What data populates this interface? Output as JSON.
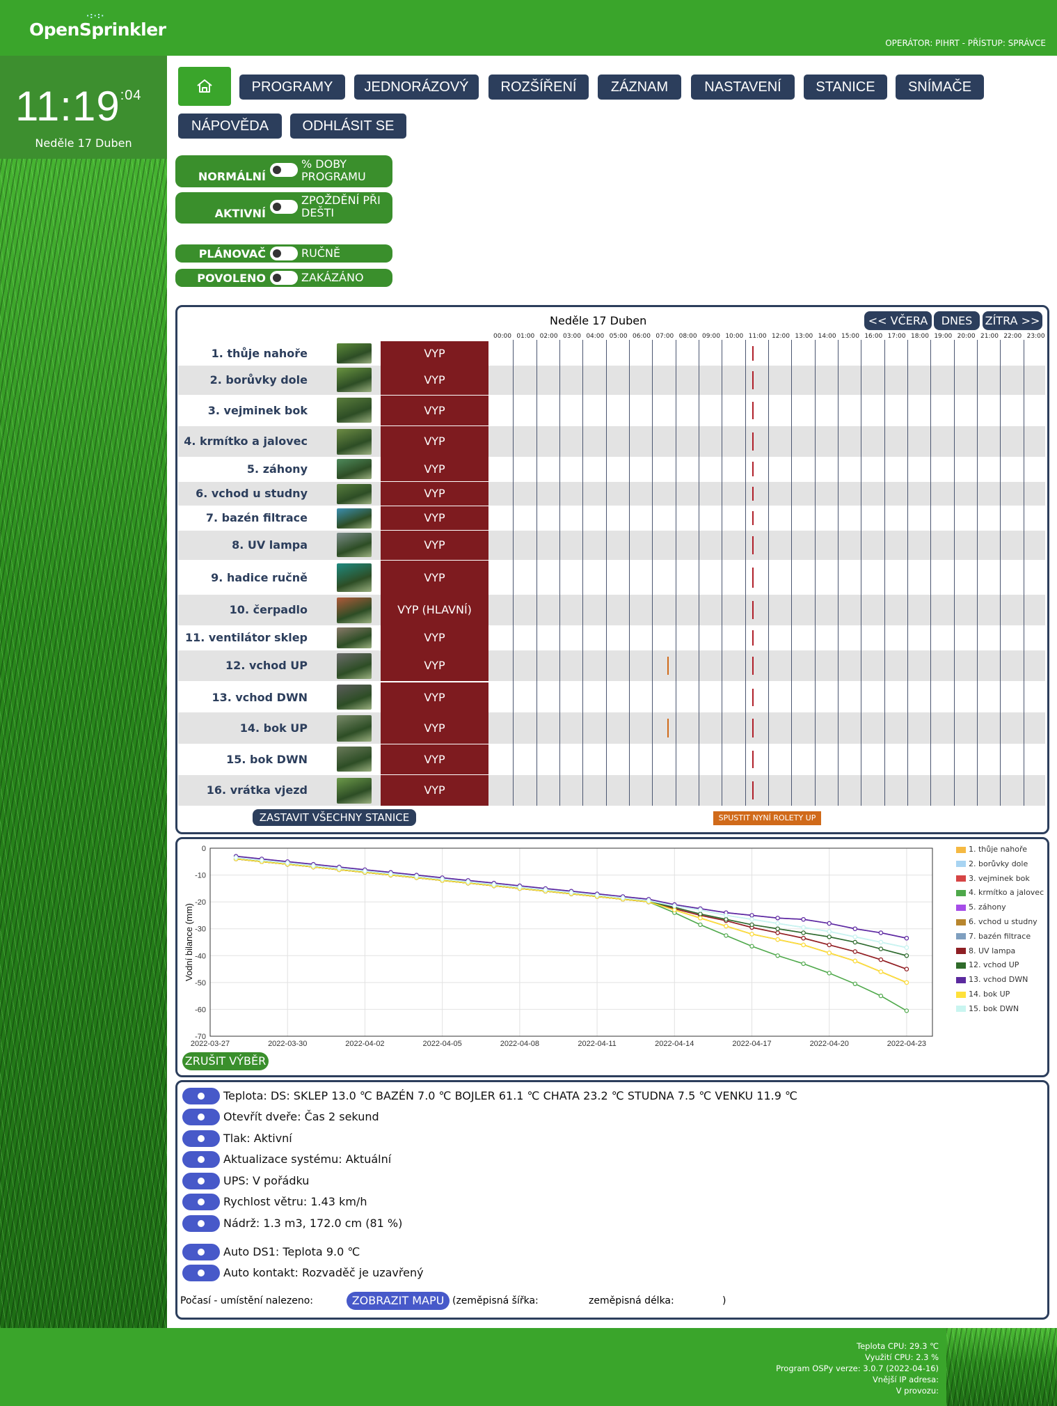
{
  "header": {
    "logo": "OpenSprinkler",
    "operator": "OPERÁTOR: PIHRT - PŘÍSTUP: SPRÁVCE"
  },
  "clock": {
    "hm": "11:19",
    "sec": ":04",
    "date": "Neděle 17 Duben"
  },
  "nav": {
    "row1": [
      "PROGRAMY",
      "JEDNORÁZOVÝ",
      "ROZŠÍŘENÍ",
      "ZÁZNAM",
      "NASTAVENÍ",
      "STANICE",
      "SNÍMAČE"
    ],
    "row2": [
      "NÁPOVĚDA",
      "ODHLÁSIT SE"
    ]
  },
  "toggles": [
    {
      "left": "NORMÁLNÍ",
      "right1": "% DOBY",
      "right2": "PROGRAMU"
    },
    {
      "left": "AKTIVNÍ",
      "right1": "ZPOŽDĚNÍ PŘI",
      "right2": "DEŠTI"
    },
    {
      "left": "PLÁNOVAČ",
      "right1": "RUČNĚ",
      "right2": ""
    },
    {
      "left": "POVOLENO",
      "right1": "ZAKÁZÁNO",
      "right2": ""
    }
  ],
  "schedule": {
    "date": "Neděle 17 Duben",
    "btn_prev": "<< VČERA",
    "btn_today": "DNES",
    "btn_next": "ZÍTRA >>",
    "hours": [
      "00:00",
      "01:00",
      "02:00",
      "03:00",
      "04:00",
      "05:00",
      "06:00",
      "07:00",
      "08:00",
      "09:00",
      "10:00",
      "11:00",
      "12:00",
      "13:00",
      "14:00",
      "15:00",
      "16:00",
      "17:00",
      "18:00",
      "19:00",
      "20:00",
      "21:00",
      "22:00",
      "23:00"
    ],
    "now_hour": 11.32,
    "stations": [
      {
        "name": "1. thůje nahoře",
        "status": "VYP"
      },
      {
        "name": "2. borůvky dole",
        "status": "VYP"
      },
      {
        "name": "3. vejminek bok",
        "status": "VYP"
      },
      {
        "name": "4. krmítko a jalovec",
        "status": "VYP"
      },
      {
        "name": "5. záhony",
        "status": "VYP"
      },
      {
        "name": "6. vchod u studny",
        "status": "VYP"
      },
      {
        "name": "7. bazén filtrace",
        "status": "VYP"
      },
      {
        "name": "8. UV lampa",
        "status": "VYP"
      },
      {
        "name": "9. hadice ručně",
        "status": "VYP"
      },
      {
        "name": "10. čerpadlo",
        "status": "VYP (HLAVNÍ)"
      },
      {
        "name": "11. ventilátor sklep",
        "status": "VYP"
      },
      {
        "name": "12. vchod UP",
        "status": "VYP"
      },
      {
        "name": "13. vchod DWN",
        "status": "VYP"
      },
      {
        "name": "14. bok UP",
        "status": "VYP"
      },
      {
        "name": "15. bok DWN",
        "status": "VYP"
      },
      {
        "name": "16. vrátka vjezd",
        "status": "VYP"
      }
    ],
    "scheduled_marks": [
      {
        "station": 12,
        "hour": 7.65
      },
      {
        "station": 14,
        "hour": 7.65
      }
    ],
    "stop_all": "ZASTAVIT VŠECHNY STANICE",
    "run_now": "SPUSTIT NYNÍ ROLETY UP"
  },
  "chart_data": {
    "type": "line",
    "ylabel": "Vodní bilance (mm)",
    "xlabel": "",
    "ylim": [
      -70,
      0
    ],
    "yticks": [
      0,
      -10,
      -20,
      -30,
      -40,
      -50,
      -60,
      -70
    ],
    "x_ticks": [
      "2022-03-27",
      "2022-03-30",
      "2022-04-02",
      "2022-04-05",
      "2022-04-08",
      "2022-04-11",
      "2022-04-14",
      "2022-04-17",
      "2022-04-20",
      "2022-04-23"
    ],
    "x": [
      "2022-03-28",
      "2022-03-29",
      "2022-03-30",
      "2022-03-31",
      "2022-04-01",
      "2022-04-02",
      "2022-04-03",
      "2022-04-04",
      "2022-04-05",
      "2022-04-06",
      "2022-04-07",
      "2022-04-08",
      "2022-04-09",
      "2022-04-10",
      "2022-04-11",
      "2022-04-12",
      "2022-04-13",
      "2022-04-14",
      "2022-04-15",
      "2022-04-16",
      "2022-04-17",
      "2022-04-18",
      "2022-04-19",
      "2022-04-20",
      "2022-04-21",
      "2022-04-22",
      "2022-04-23"
    ],
    "series": [
      {
        "name": "1. thůje nahoře",
        "color": "#f5b942",
        "values": [
          -4,
          -5,
          -6,
          -7,
          -8,
          -9,
          -10,
          -11,
          -12,
          -13,
          -14,
          -15,
          -16,
          -17,
          -18,
          -19,
          -20,
          -23,
          -26,
          -29,
          -32,
          -34,
          -36,
          -39,
          -42,
          -46,
          -50
        ]
      },
      {
        "name": "2. borůvky dole",
        "color": "#a8d4f2",
        "values": [
          -3.5,
          -4.5,
          -5.5,
          -6.5,
          -7.5,
          -8.5,
          -9.5,
          -10.5,
          -11.5,
          -12.5,
          -13.5,
          -14.5,
          -15.5,
          -16.5,
          -17.5,
          -18.5,
          -19.5,
          -21.5,
          -23,
          -25,
          -26.5,
          -28,
          -29.5,
          -31,
          -33,
          -35,
          -37
        ]
      },
      {
        "name": "3. vejminek bok",
        "color": "#d64545",
        "values": [
          -4,
          -5,
          -6,
          -7,
          -8,
          -9,
          -10,
          -11,
          -12,
          -13,
          -14,
          -15,
          -16,
          -17,
          -18,
          -19,
          -20,
          -22.5,
          -25,
          -27,
          -29.5,
          -31.5,
          -33.5,
          -36,
          -38.5,
          -41.5,
          -45
        ]
      },
      {
        "name": "4. krmítko a jalovec",
        "color": "#4ea84a",
        "values": [
          -4,
          -5,
          -6,
          -7,
          -8,
          -9,
          -10,
          -11,
          -12,
          -13,
          -14,
          -15,
          -16,
          -17,
          -18,
          -19,
          -20,
          -24,
          -28.5,
          -32.5,
          -36.5,
          -40,
          -43,
          -46.5,
          -50.5,
          -55,
          -60.5
        ]
      },
      {
        "name": "5. záhony",
        "color": "#a64de8",
        "values": [
          -3,
          -4,
          -5,
          -6,
          -7,
          -8,
          -9,
          -10,
          -11,
          -12,
          -13,
          -14,
          -15,
          -16,
          -17,
          -18,
          -19,
          -21,
          -22.5,
          -24,
          -25,
          -26,
          -26.5,
          -28,
          -30,
          -31.5,
          -33.5
        ]
      },
      {
        "name": "6. vchod u studny",
        "color": "#b8862e",
        "values": [
          -4,
          -5,
          -6,
          -7,
          -8,
          -9,
          -10,
          -11,
          -12,
          -13,
          -14,
          -15,
          -16,
          -17,
          -18,
          -19,
          -20,
          -23,
          -26,
          -29,
          -32,
          -34,
          -36,
          -39,
          -42,
          -46,
          -50
        ]
      },
      {
        "name": "7. bazén filtrace",
        "color": "#7f9fbf",
        "values": [
          -4,
          -5,
          -6,
          -7,
          -8,
          -9,
          -10,
          -11,
          -12,
          -13,
          -14,
          -15,
          -16,
          -17,
          -18,
          -19,
          -20,
          -22,
          -24.5,
          -26.5,
          -28.5,
          -30,
          -31.5,
          -33,
          -35,
          -37.5,
          -40
        ]
      },
      {
        "name": "8. UV lampa",
        "color": "#8e1f24",
        "values": [
          -4,
          -5,
          -6,
          -7,
          -8,
          -9,
          -10,
          -11,
          -12,
          -13,
          -14,
          -15,
          -16,
          -17,
          -18,
          -19,
          -20,
          -22.5,
          -25,
          -27,
          -29.5,
          -31.5,
          -33.5,
          -36,
          -38.5,
          -41.5,
          -45
        ]
      },
      {
        "name": "12. vchod UP",
        "color": "#2f6b2a",
        "values": [
          -4,
          -5,
          -6,
          -7,
          -8,
          -9,
          -10,
          -11,
          -12,
          -13,
          -14,
          -15,
          -16,
          -17,
          -18,
          -19,
          -20,
          -22,
          -24.5,
          -26.5,
          -28.5,
          -30,
          -31.5,
          -33,
          -35,
          -37.5,
          -40
        ]
      },
      {
        "name": "13. vchod DWN",
        "color": "#5b2a9e",
        "values": [
          -3,
          -4,
          -5,
          -6,
          -7,
          -8,
          -9,
          -10,
          -11,
          -12,
          -13,
          -14,
          -15,
          -16,
          -17,
          -18,
          -19,
          -21,
          -22.5,
          -24,
          -25,
          -26,
          -26.5,
          -28,
          -30,
          -31.5,
          -33.5
        ]
      },
      {
        "name": "14. bok UP",
        "color": "#ffe13b",
        "values": [
          -4,
          -5,
          -6,
          -7,
          -8,
          -9,
          -10,
          -11,
          -12,
          -13,
          -14,
          -15,
          -16,
          -17,
          -18,
          -19,
          -20,
          -23,
          -26,
          -29,
          -32,
          -34,
          -36,
          -39,
          -42,
          -46,
          -50
        ]
      },
      {
        "name": "15. bok DWN",
        "color": "#c9f5f0",
        "values": [
          -3.5,
          -4.5,
          -5.5,
          -6.5,
          -7.5,
          -8.5,
          -9.5,
          -10.5,
          -11.5,
          -12.5,
          -13.5,
          -14.5,
          -15.5,
          -16.5,
          -17.5,
          -18.5,
          -19.5,
          -21.5,
          -23,
          -25,
          -26.5,
          -28,
          -29.5,
          -31,
          -33,
          -35,
          -37
        ]
      }
    ],
    "legend_position": "right",
    "grid": true
  },
  "chart_reset": "ZRUŠIT VÝBĚR",
  "sensors": [
    "Teplota: DS: SKLEP 13.0 ℃ BAZÉN 7.0 ℃ BOJLER 61.1 ℃ CHATA 23.2 ℃ STUDNA 7.5 ℃ VENKU 11.9 ℃",
    "Otevřít dveře: Čas 2 sekund",
    "Tlak: Aktivní",
    "Aktualizace systému: Aktuální",
    "UPS: V pořádku",
    "Rychlost větru: 1.43 km/h",
    "Nádrž: 1.3 m3, 172.0 cm (81 %)",
    "Auto DS1: Teplota 9.0 ℃",
    "Auto kontakt: Rozvaděč je uzavřený"
  ],
  "weather": {
    "label": "Počasí - umístění nalezeno:",
    "map_button": "ZOBRAZIT MAPU",
    "lat": "(zeměpisná šířka:",
    "lon": "zeměpisná délka:",
    "close": ")"
  },
  "footer": {
    "cpu_temp": "Teplota CPU: 29.3 ℃",
    "cpu_usage": "Využití CPU: 2.3 %",
    "version": "Program OSPy verze: 3.0.7 (2022-04-16)",
    "ip": "Vnější IP adresa:",
    "uptime": "V provozu:"
  }
}
